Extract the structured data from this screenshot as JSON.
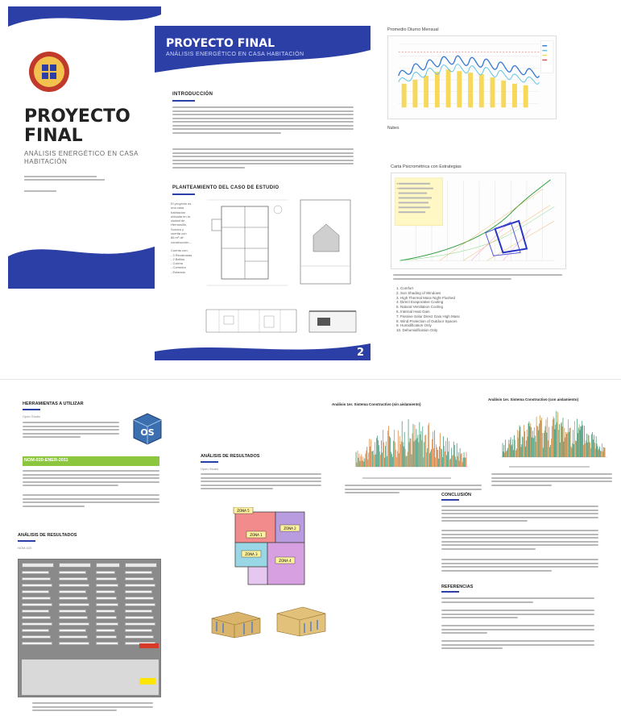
{
  "colors": {
    "brand_blue": "#2b3fa6",
    "accent_orange": "#f2b53b",
    "nom_green": "#8cc63f"
  },
  "cover": {
    "title_line1": "PROYECTO",
    "title_line2": "FINAL",
    "subtitle": "ANÁLISIS ENERGÉTICO EN CASA HABITACIÓN",
    "seal_icon": "university-seal-icon"
  },
  "page2": {
    "title": "PROYECTO FINAL",
    "subtitle": "ANÁLISIS ENERGÉTICO EN CASA HABITACIÓN",
    "intro_heading": "INTRODUCCIÓN",
    "case_heading": "PLANTEAMIENTO DEL CASO DE ESTUDIO",
    "page_number": "2",
    "case_column_lines": [
      "El proyecto es",
      "una casa",
      "habitación",
      "ubicada en la",
      "ciudad de",
      "Hermosillo,",
      "Sonora y",
      "cuenta con",
      "86 m² de",
      "construcción...",
      "",
      "Cuenta con:",
      "- 3 Recámaras",
      "- 2 Baños",
      "- Cocina",
      "- Comedor",
      "- Estancia"
    ]
  },
  "right_top": {
    "chart1_label": "Promedio Diurno Mensual",
    "chart1_note": "Nubes",
    "chart2_label": "Carta Psicrométrica con Estrategias",
    "strategies": [
      "1. Comfort",
      "2. Sun Shading of Windows",
      "3. High Thermal Mass Night Flushed",
      "4. Direct Evaporative Cooling",
      "5. Natural Ventilation Cooling",
      "6. Internal Heat Gain",
      "7. Passive Solar Direct Gain High Mass",
      "8. Wind Protection of Outdoor Spaces",
      "9. Humidification Only",
      "10. Dehumidification Only"
    ]
  },
  "bottom": {
    "tools_heading": "HERRAMIENTAS A UTILIZAR",
    "tools_sub": "Open Studio",
    "nom_label": "NOM-020-ENER-2011",
    "results_heading_left": "ANÁLISIS DE RESULTADOS",
    "results_sub_left": "NOM-020",
    "results_heading_mid": "ANÁLISIS DE RESULTADOS",
    "results_sub_mid": "Open Studio",
    "analysis_a": "Análisis 1er. Sistema Constructivo (sin aislamiento)",
    "analysis_b": "Análisis 1er. Sistema Constructivo (con aislamiento)",
    "conclusion_heading": "CONCLUSIÓN",
    "references_heading": "REFERENCIAS",
    "zones": [
      "ZONA 1",
      "ZONA 2",
      "ZONA 3",
      "ZONA 4",
      "ZONA 5"
    ],
    "os_logo_text": "OS"
  }
}
